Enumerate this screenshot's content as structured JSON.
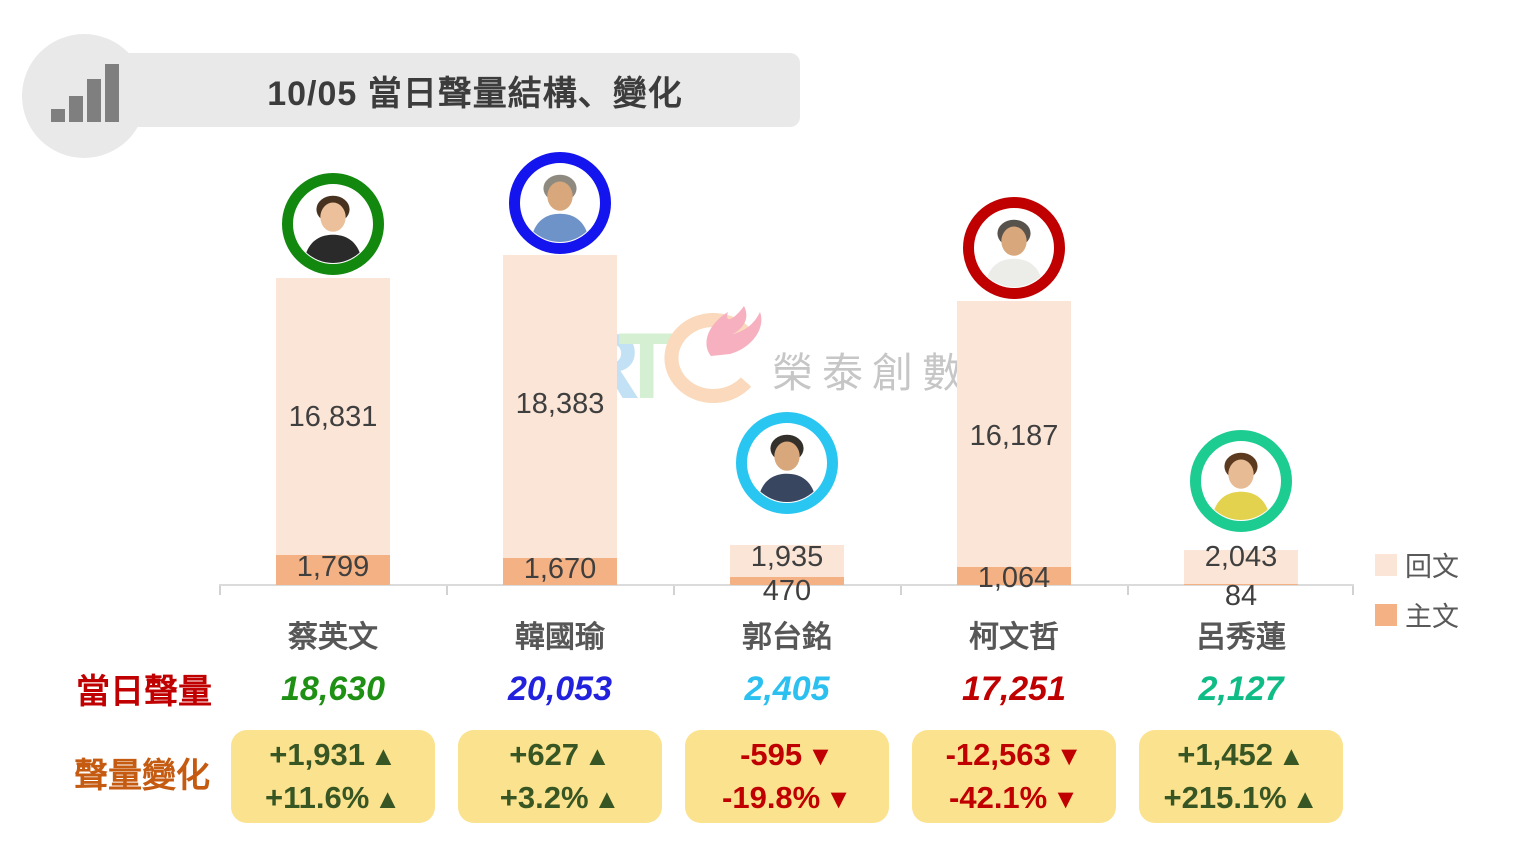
{
  "header": {
    "title": "10/05 當日聲量結構、變化",
    "icon": "bar-chart-icon"
  },
  "watermark": {
    "letters": [
      "R",
      "T",
      "C"
    ],
    "text": "榮泰創數",
    "flame_icon": "flame-icon"
  },
  "rows": {
    "volume_label": "當日聲量",
    "change_label": "聲量變化"
  },
  "legend": {
    "items": [
      {
        "label": "回文",
        "color": "#FBE5D6"
      },
      {
        "label": "主文",
        "color": "#F4B183"
      }
    ]
  },
  "colors": {
    "bar_reply": "#FBE5D6",
    "bar_main": "#F4B183",
    "axis": "#DBDBDB",
    "change_box_bg": "#FBE28E",
    "up": "#375623",
    "down": "#C00000",
    "volume_label": "#C00000",
    "change_label": "#C55A11",
    "header_bg": "#E9E9E9",
    "title_text": "#3C3C3C",
    "bar_value_text": "#3F3F3F"
  },
  "candidates": [
    {
      "name": "蔡英文",
      "ring_color": "#12880F",
      "reply": "16,831",
      "main": "1,799",
      "total": "18,630",
      "total_color": "#1E9014",
      "change": "+1,931",
      "change_pct": "+11.6%",
      "arrow": "▲",
      "direction": "up",
      "avatar": {
        "hair": "#47321F",
        "skin": "#ECC09B",
        "shirt": "#2A2A2A"
      }
    },
    {
      "name": "韓國瑜",
      "ring_color": "#1414EE",
      "reply": "18,383",
      "main": "1,670",
      "total": "20,053",
      "total_color": "#2222DE",
      "change": "+627",
      "change_pct": "+3.2%",
      "arrow": "▲",
      "direction": "up",
      "avatar": {
        "hair": "#8F8A80",
        "skin": "#D8A77C",
        "shirt": "#6E93C8"
      }
    },
    {
      "name": "郭台銘",
      "ring_color": "#29C6F2",
      "reply": "1,935",
      "main": "470",
      "total": "2,405",
      "total_color": "#2BC0F0",
      "change": "-595",
      "change_pct": "-19.8%",
      "arrow": "▼",
      "direction": "down",
      "avatar": {
        "hair": "#33302C",
        "skin": "#D8A77C",
        "shirt": "#39465F"
      }
    },
    {
      "name": "柯文哲",
      "ring_color": "#C00000",
      "reply": "16,187",
      "main": "1,064",
      "total": "17,251",
      "total_color": "#C00000",
      "change": "-12,563",
      "change_pct": "-42.1%",
      "arrow": "▼",
      "direction": "down",
      "avatar": {
        "hair": "#57524C",
        "skin": "#D8A77C",
        "shirt": "#ECECE8"
      }
    },
    {
      "name": "呂秀蓮",
      "ring_color": "#1CCC90",
      "reply": "2,043",
      "main": "84",
      "total": "2,127",
      "total_color": "#0FBC86",
      "change": "+1,452",
      "change_pct": "+215.1%",
      "arrow": "▲",
      "direction": "up",
      "avatar": {
        "hair": "#5C3A20",
        "skin": "#E7BB94",
        "shirt": "#E3D24E"
      }
    }
  ],
  "chart_data": {
    "type": "bar",
    "stacked": true,
    "title": "10/05 當日聲量結構、變化",
    "categories": [
      "蔡英文",
      "韓國瑜",
      "郭台銘",
      "柯文哲",
      "呂秀蓮"
    ],
    "series": [
      {
        "name": "回文",
        "color": "#FBE5D6",
        "values": [
          16831,
          18383,
          1935,
          16187,
          2043
        ]
      },
      {
        "name": "主文",
        "color": "#F4B183",
        "values": [
          1799,
          1670,
          470,
          1064,
          84
        ]
      }
    ],
    "totals": [
      18630,
      20053,
      2405,
      17251,
      2127
    ],
    "changes": [
      1931,
      627,
      -595,
      -12563,
      1452
    ],
    "changes_pct": [
      11.6,
      3.2,
      -19.8,
      -42.1,
      215.1
    ],
    "legend_position": "right",
    "ylim": [
      0,
      20053
    ],
    "grid": false
  }
}
